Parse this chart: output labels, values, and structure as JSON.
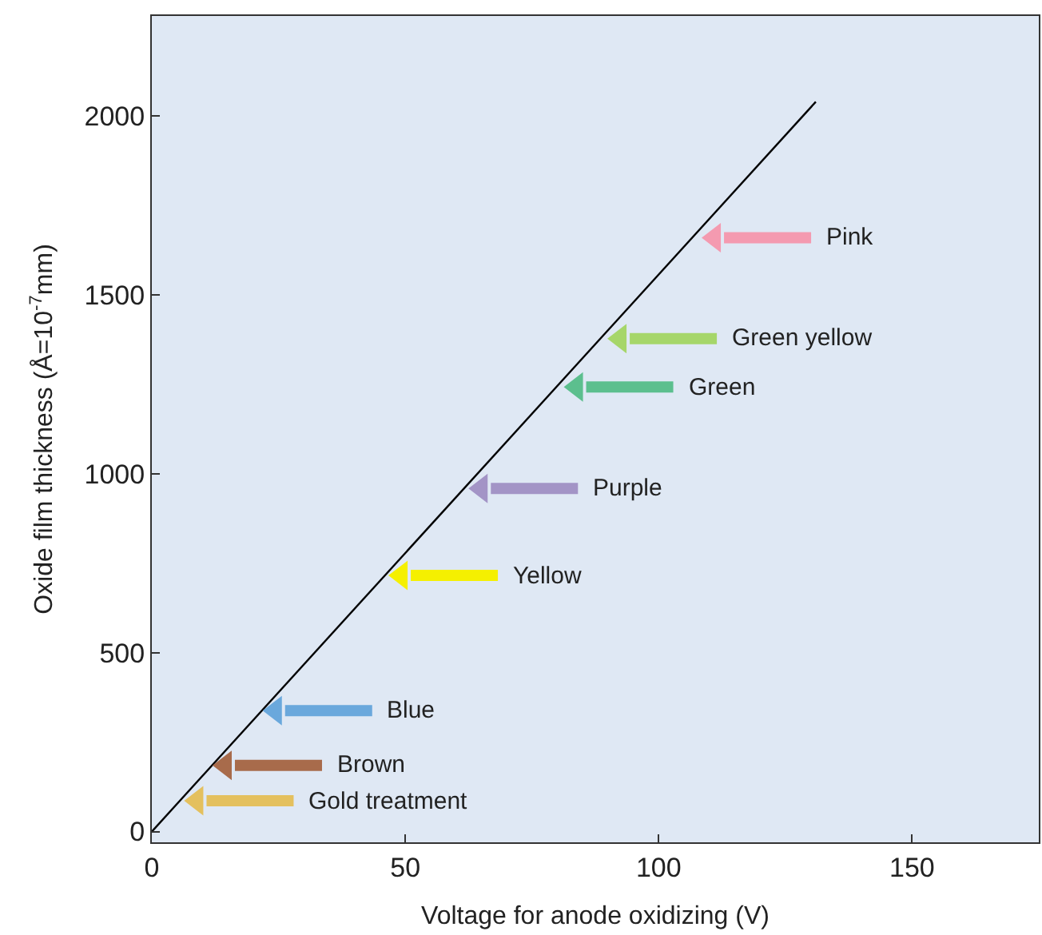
{
  "chart_data": {
    "type": "line",
    "xlabel": "Voltage for anode oxidizing (V)",
    "ylabel": "Oxide film thickness (Å=10$^{-7}$mm)",
    "xlim": [
      0,
      175
    ],
    "ylim": [
      -30,
      2280
    ],
    "xticks": [
      0,
      50,
      100,
      150
    ],
    "yticks": [
      0,
      500,
      1000,
      1500,
      2000
    ],
    "grid": false,
    "series": [
      {
        "color": "#000000",
        "x": [
          0,
          131
        ],
        "values": [
          0,
          2040
        ],
        "marker": "none"
      },
      {
        "type": "scatter",
        "marker": "triangle",
        "x": [
          111,
          92.4,
          83.8,
          65,
          49.2,
          24.4,
          14.5,
          8.9
        ],
        "values": [
          1660,
          1378,
          1243,
          959,
          716,
          338,
          185,
          86
        ],
        "colors": [
          "#f49ab0",
          "#a6d66a",
          "#5cbf8e",
          "#a394c6",
          "#f5f000",
          "#6aa8dc",
          "#a86b4b",
          "#e4c05e"
        ],
        "value_labels": [
          "Pink",
          "Green yellow",
          "Green",
          "Purple",
          "Yellow",
          "Blue",
          "Brown",
          "Gold treatment"
        ]
      }
    ]
  }
}
